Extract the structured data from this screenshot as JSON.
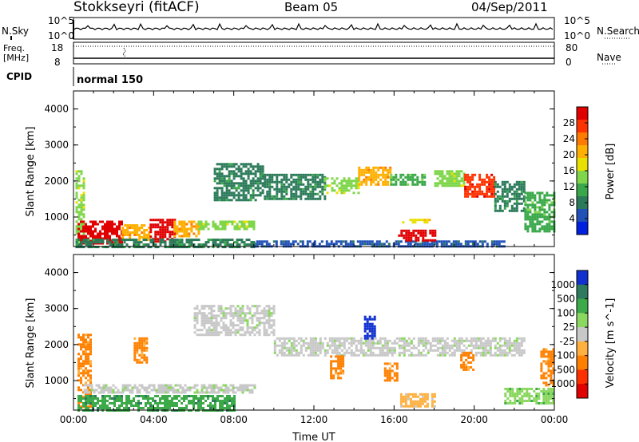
{
  "header": {
    "station": "Stokkseyri (fitACF)",
    "beam": "Beam 05",
    "date": "04/Sep/2011"
  },
  "noise_panel": {
    "left_label": "N.Sky",
    "right_label": "N.Search",
    "tick_hi": "10^5",
    "tick_lo": "10^0"
  },
  "freq_panel": {
    "left_label": "Freq.",
    "unit_label": "[MHz]",
    "right_label": "Nave",
    "left_ticks": [
      "18",
      "8"
    ],
    "right_ticks": [
      "80",
      "0"
    ]
  },
  "cpid_panel": {
    "label": "CPID",
    "mode": "normal 150"
  },
  "colors": {
    "grey_scatter": "#c8c8c8"
  },
  "chart_data": [
    {
      "type": "heatmap",
      "title": "",
      "xlabel": "",
      "ylabel": "Slant Range [km]",
      "xlim": [
        0,
        24
      ],
      "ylim": [
        180,
        4500
      ],
      "x_ticks": [],
      "y_ticks": [
        "1000",
        "2000",
        "3000",
        "4000"
      ],
      "colorbar": {
        "label": "Power [dB]",
        "ticks": [
          "28",
          "24",
          "20",
          "16",
          "12",
          "8",
          "4"
        ],
        "colors": [
          "#e00000",
          "#ff3300",
          "#ff7a00",
          "#ffb000",
          "#e8e000",
          "#7fd64b",
          "#3aa84a",
          "#2b7a5a",
          "#2050b8",
          "#0020e0"
        ]
      },
      "regions": [
        {
          "t0": 0.1,
          "t1": 0.5,
          "r0": 250,
          "r1": 2300,
          "value": 14
        },
        {
          "t0": 0.2,
          "t1": 2.4,
          "r0": 300,
          "r1": 900,
          "value": 28
        },
        {
          "t0": 2.4,
          "t1": 3.8,
          "r0": 350,
          "r1": 800,
          "value": 20
        },
        {
          "t0": 3.8,
          "t1": 5.0,
          "r0": 300,
          "r1": 950,
          "value": 28
        },
        {
          "t0": 5.0,
          "t1": 6.2,
          "r0": 500,
          "r1": 900,
          "value": 20
        },
        {
          "t0": 6.2,
          "t1": 9.0,
          "r0": 650,
          "r1": 900,
          "value": 12
        },
        {
          "t0": 0.1,
          "t1": 9.0,
          "r0": 200,
          "r1": 400,
          "value": 6
        },
        {
          "t0": 9.0,
          "t1": 21.5,
          "r0": 200,
          "r1": 350,
          "value": 5
        },
        {
          "t0": 7.0,
          "t1": 9.5,
          "r0": 1500,
          "r1": 2500,
          "value": 8
        },
        {
          "t0": 9.5,
          "t1": 12.5,
          "r0": 1500,
          "r1": 2200,
          "value": 6
        },
        {
          "t0": 12.5,
          "t1": 14.2,
          "r0": 1700,
          "r1": 2100,
          "value": 12
        },
        {
          "t0": 14.2,
          "t1": 15.8,
          "r0": 1900,
          "r1": 2400,
          "value": 20
        },
        {
          "t0": 15.8,
          "t1": 17.5,
          "r0": 1900,
          "r1": 2200,
          "value": 10
        },
        {
          "t0": 16.2,
          "t1": 18.0,
          "r0": 350,
          "r1": 650,
          "value": 28
        },
        {
          "t0": 16.4,
          "t1": 17.8,
          "r0": 850,
          "r1": 950,
          "value": 16
        },
        {
          "t0": 18.0,
          "t1": 19.5,
          "r0": 1900,
          "r1": 2300,
          "value": 12
        },
        {
          "t0": 19.5,
          "t1": 21.0,
          "r0": 1600,
          "r1": 2200,
          "value": 24
        },
        {
          "t0": 21.0,
          "t1": 22.5,
          "r0": 1200,
          "r1": 2000,
          "value": 8
        },
        {
          "t0": 22.5,
          "t1": 24.0,
          "r0": 600,
          "r1": 1700,
          "value": 10
        }
      ]
    },
    {
      "type": "heatmap",
      "title": "",
      "xlabel": "Time UT",
      "ylabel": "Slant Range [km]",
      "xlim": [
        0,
        24
      ],
      "ylim": [
        180,
        4500
      ],
      "x_ticks": [
        "00:00",
        "04:00",
        "08:00",
        "12:00",
        "16:00",
        "20:00",
        "00:00"
      ],
      "y_ticks": [
        "1000",
        "2000",
        "3000",
        "4000"
      ],
      "colorbar": {
        "label": "Velocity [m s^-1]",
        "ticks": [
          "1000",
          "500",
          "100",
          "25",
          "-25",
          "-100",
          "-500",
          "-1000"
        ],
        "colors": [
          "#1030d0",
          "#2e7a5e",
          "#3caa48",
          "#8bd860",
          "#c8c8c8",
          "#ffb040",
          "#ff8000",
          "#ff3000",
          "#e00000"
        ]
      },
      "regions": [
        {
          "t0": 0.2,
          "t1": 0.8,
          "r0": 300,
          "r1": 2300,
          "value": -500
        },
        {
          "t0": 0.2,
          "t1": 8.0,
          "r0": 200,
          "r1": 600,
          "value": 100
        },
        {
          "t0": 0.5,
          "t1": 9.0,
          "r0": 650,
          "r1": 900,
          "value": 0
        },
        {
          "t0": 3.0,
          "t1": 3.6,
          "r0": 1500,
          "r1": 2200,
          "value": -500
        },
        {
          "t0": 6.0,
          "t1": 10.0,
          "r0": 2300,
          "r1": 3100,
          "value": 0
        },
        {
          "t0": 10.0,
          "t1": 22.5,
          "r0": 1700,
          "r1": 2200,
          "value": 0
        },
        {
          "t0": 16.3,
          "t1": 18.0,
          "r0": 300,
          "r1": 650,
          "value": -100
        },
        {
          "t0": 15.5,
          "t1": 16.2,
          "r0": 1000,
          "r1": 1500,
          "value": -500
        },
        {
          "t0": 12.8,
          "t1": 13.5,
          "r0": 1100,
          "r1": 1700,
          "value": -500
        },
        {
          "t0": 14.5,
          "t1": 15.0,
          "r0": 2200,
          "r1": 2800,
          "value": 1000
        },
        {
          "t0": 19.3,
          "t1": 20.0,
          "r0": 1300,
          "r1": 1800,
          "value": -500
        },
        {
          "t0": 23.3,
          "t1": 24.0,
          "r0": 900,
          "r1": 1900,
          "value": -500
        },
        {
          "t0": 21.5,
          "t1": 24.0,
          "r0": 400,
          "r1": 800,
          "value": 25
        }
      ]
    }
  ]
}
